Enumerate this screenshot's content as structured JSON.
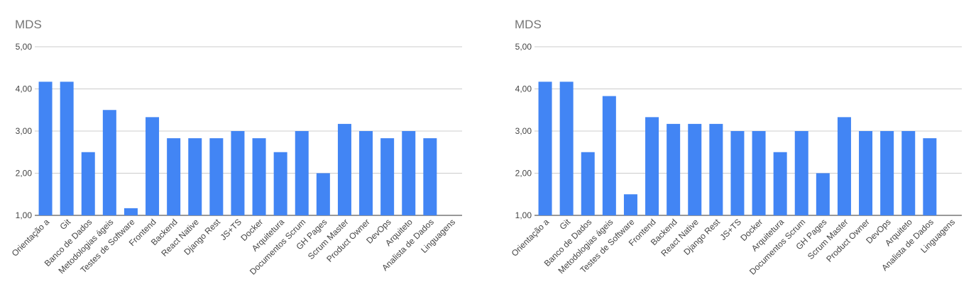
{
  "chart_data": [
    {
      "type": "bar",
      "title": "MDS",
      "xlabel": "",
      "ylabel": "",
      "ylim": [
        1,
        5
      ],
      "yticks": [
        "1,00",
        "2,00",
        "3,00",
        "4,00",
        "5,00"
      ],
      "grid": true,
      "color": "#4285f4",
      "categories": [
        "Orientação a",
        "Git",
        "Banco de Dados",
        "Metodologias ágeis",
        "Testes de Software",
        "Frontend",
        "Backend",
        "React Native",
        "Django Rest",
        "JS+TS",
        "Docker",
        "Arquitetura",
        "Documentos Scrum",
        "GH Pages",
        "Scrum Master",
        "Product Owner",
        "DevOps",
        "Arquiteto",
        "Analista de Dados",
        "Linguagens"
      ],
      "values": [
        4.17,
        4.17,
        2.5,
        3.5,
        1.17,
        3.33,
        2.83,
        2.83,
        2.83,
        3.0,
        2.83,
        2.5,
        3.0,
        2.0,
        3.17,
        3.0,
        2.83,
        3.0,
        2.83,
        null
      ]
    },
    {
      "type": "bar",
      "title": "MDS",
      "xlabel": "",
      "ylabel": "",
      "ylim": [
        1,
        5
      ],
      "yticks": [
        "1,00",
        "2,00",
        "3,00",
        "4,00",
        "5,00"
      ],
      "grid": true,
      "color": "#4285f4",
      "categories": [
        "Orientação a",
        "Git",
        "Banco de Dados",
        "Metodologias ágeis",
        "Testes de Software",
        "Frontend",
        "Backend",
        "React Native",
        "Django Rest",
        "JS+TS",
        "Docker",
        "Arquitetura",
        "Documentos Scrum",
        "GH Pages",
        "Scrum Master",
        "Product Owner",
        "DevOps",
        "Arquiteto",
        "Analista de Dados",
        "Linguagens"
      ],
      "values": [
        4.17,
        4.17,
        2.5,
        3.83,
        1.5,
        3.33,
        3.17,
        3.17,
        3.17,
        3.0,
        3.0,
        2.5,
        3.0,
        2.0,
        3.33,
        3.0,
        3.0,
        3.0,
        2.83,
        null
      ]
    }
  ]
}
